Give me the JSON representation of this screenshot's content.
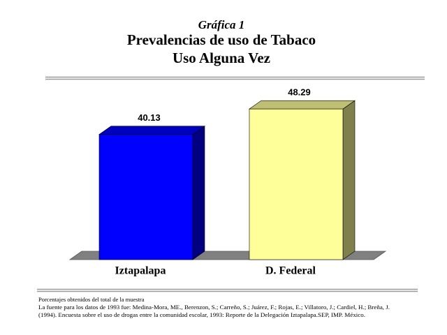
{
  "chart_data": {
    "type": "bar3d",
    "title_label": "Gráfica 1",
    "title": "Prevalencias de uso de Tabaco",
    "subtitle": "Uso Alguna Vez",
    "categories": [
      "Iztapalapa",
      "D. Federal"
    ],
    "values": [
      40.13,
      48.29
    ],
    "colors": [
      "#0000ff",
      "#ffff99"
    ],
    "notes": [
      "Porcentajes obtenidos del total de la muestra",
      "La fuente para los datos de 1993 fue: Medina-Mora, ME., Berenzon, S.; Carreño, S.; Juárez, F.; Rojas, E.; Villatoro, J.; Cardiel, H.; Breña, J.",
      "(1994). Encuesta sobre el uso de drogas entre la comunidad escolar, 1993: Reporte de la Delegación Iztapalapa.SEP, IMP. México."
    ]
  }
}
